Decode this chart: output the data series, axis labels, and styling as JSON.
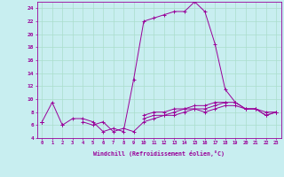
{
  "xlabel": "Windchill (Refroidissement éolien,°C)",
  "x_values": [
    0,
    1,
    2,
    3,
    4,
    5,
    6,
    7,
    8,
    9,
    10,
    11,
    12,
    13,
    14,
    15,
    16,
    17,
    18,
    19,
    20,
    21,
    22,
    23
  ],
  "series": [
    [
      6.5,
      9.5,
      6.0,
      7.0,
      7.0,
      6.5,
      5.0,
      5.5,
      5.0,
      13.0,
      22.0,
      22.5,
      23.0,
      23.5,
      23.5,
      25.0,
      23.5,
      18.5,
      11.5,
      9.5,
      8.5,
      8.5,
      7.5,
      8.0
    ],
    [
      6.5,
      null,
      6.0,
      null,
      6.5,
      6.0,
      6.5,
      5.0,
      5.5,
      5.0,
      6.5,
      7.0,
      7.5,
      7.5,
      8.0,
      8.5,
      8.0,
      8.5,
      9.0,
      9.0,
      8.5,
      8.5,
      7.5,
      8.0
    ],
    [
      6.5,
      null,
      null,
      null,
      null,
      null,
      null,
      null,
      null,
      null,
      7.0,
      7.5,
      7.5,
      8.0,
      8.5,
      8.5,
      8.5,
      9.0,
      9.5,
      9.5,
      8.5,
      8.5,
      8.0,
      8.0
    ],
    [
      6.5,
      null,
      null,
      null,
      null,
      null,
      null,
      null,
      null,
      null,
      7.5,
      8.0,
      8.0,
      8.5,
      8.5,
      9.0,
      9.0,
      9.5,
      9.5,
      null,
      null,
      null,
      null,
      null
    ]
  ],
  "line_color": "#990099",
  "bg_color": "#c8eef0",
  "grid_color": "#aaddcc",
  "ylim": [
    4,
    25
  ],
  "yticks": [
    4,
    6,
    8,
    10,
    12,
    14,
    16,
    18,
    20,
    22,
    24
  ],
  "xlim": [
    -0.5,
    23.5
  ],
  "x_tick_labels": [
    "0",
    "1",
    "2",
    "3",
    "4",
    "5",
    "6",
    "7",
    "8",
    "9",
    "10",
    "11",
    "12",
    "13",
    "14",
    "15",
    "16",
    "17",
    "18",
    "19",
    "20",
    "21",
    "22",
    "23"
  ]
}
